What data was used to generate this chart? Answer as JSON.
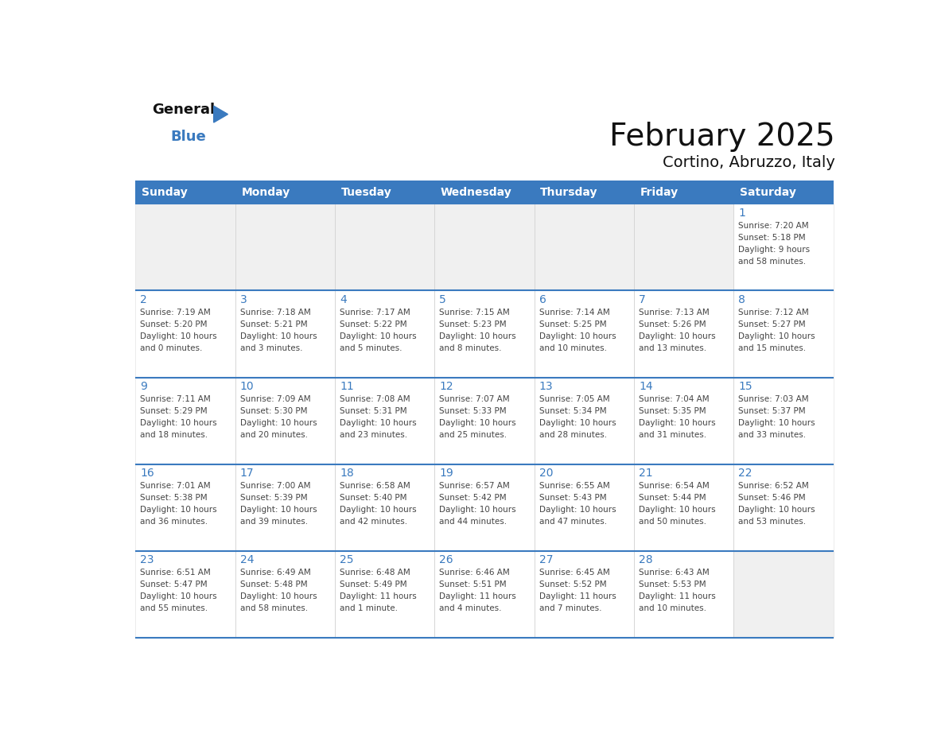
{
  "title": "February 2025",
  "subtitle": "Cortino, Abruzzo, Italy",
  "days_of_week": [
    "Sunday",
    "Monday",
    "Tuesday",
    "Wednesday",
    "Thursday",
    "Friday",
    "Saturday"
  ],
  "header_bg_color": "#3a7abf",
  "header_text_color": "#ffffff",
  "cell_bg_light": "#f0f0f0",
  "cell_bg_white": "#ffffff",
  "day_num_color": "#3a7abf",
  "text_color": "#444444",
  "border_color": "#3a7abf",
  "title_color": "#111111",
  "subtitle_color": "#111111",
  "logo_general_color": "#111111",
  "logo_blue_color": "#3a7abf",
  "logo_triangle_color": "#3a7abf",
  "calendar_data": [
    [
      {
        "day": null,
        "info": null
      },
      {
        "day": null,
        "info": null
      },
      {
        "day": null,
        "info": null
      },
      {
        "day": null,
        "info": null
      },
      {
        "day": null,
        "info": null
      },
      {
        "day": null,
        "info": null
      },
      {
        "day": 1,
        "info": "Sunrise: 7:20 AM\nSunset: 5:18 PM\nDaylight: 9 hours\nand 58 minutes."
      }
    ],
    [
      {
        "day": 2,
        "info": "Sunrise: 7:19 AM\nSunset: 5:20 PM\nDaylight: 10 hours\nand 0 minutes."
      },
      {
        "day": 3,
        "info": "Sunrise: 7:18 AM\nSunset: 5:21 PM\nDaylight: 10 hours\nand 3 minutes."
      },
      {
        "day": 4,
        "info": "Sunrise: 7:17 AM\nSunset: 5:22 PM\nDaylight: 10 hours\nand 5 minutes."
      },
      {
        "day": 5,
        "info": "Sunrise: 7:15 AM\nSunset: 5:23 PM\nDaylight: 10 hours\nand 8 minutes."
      },
      {
        "day": 6,
        "info": "Sunrise: 7:14 AM\nSunset: 5:25 PM\nDaylight: 10 hours\nand 10 minutes."
      },
      {
        "day": 7,
        "info": "Sunrise: 7:13 AM\nSunset: 5:26 PM\nDaylight: 10 hours\nand 13 minutes."
      },
      {
        "day": 8,
        "info": "Sunrise: 7:12 AM\nSunset: 5:27 PM\nDaylight: 10 hours\nand 15 minutes."
      }
    ],
    [
      {
        "day": 9,
        "info": "Sunrise: 7:11 AM\nSunset: 5:29 PM\nDaylight: 10 hours\nand 18 minutes."
      },
      {
        "day": 10,
        "info": "Sunrise: 7:09 AM\nSunset: 5:30 PM\nDaylight: 10 hours\nand 20 minutes."
      },
      {
        "day": 11,
        "info": "Sunrise: 7:08 AM\nSunset: 5:31 PM\nDaylight: 10 hours\nand 23 minutes."
      },
      {
        "day": 12,
        "info": "Sunrise: 7:07 AM\nSunset: 5:33 PM\nDaylight: 10 hours\nand 25 minutes."
      },
      {
        "day": 13,
        "info": "Sunrise: 7:05 AM\nSunset: 5:34 PM\nDaylight: 10 hours\nand 28 minutes."
      },
      {
        "day": 14,
        "info": "Sunrise: 7:04 AM\nSunset: 5:35 PM\nDaylight: 10 hours\nand 31 minutes."
      },
      {
        "day": 15,
        "info": "Sunrise: 7:03 AM\nSunset: 5:37 PM\nDaylight: 10 hours\nand 33 minutes."
      }
    ],
    [
      {
        "day": 16,
        "info": "Sunrise: 7:01 AM\nSunset: 5:38 PM\nDaylight: 10 hours\nand 36 minutes."
      },
      {
        "day": 17,
        "info": "Sunrise: 7:00 AM\nSunset: 5:39 PM\nDaylight: 10 hours\nand 39 minutes."
      },
      {
        "day": 18,
        "info": "Sunrise: 6:58 AM\nSunset: 5:40 PM\nDaylight: 10 hours\nand 42 minutes."
      },
      {
        "day": 19,
        "info": "Sunrise: 6:57 AM\nSunset: 5:42 PM\nDaylight: 10 hours\nand 44 minutes."
      },
      {
        "day": 20,
        "info": "Sunrise: 6:55 AM\nSunset: 5:43 PM\nDaylight: 10 hours\nand 47 minutes."
      },
      {
        "day": 21,
        "info": "Sunrise: 6:54 AM\nSunset: 5:44 PM\nDaylight: 10 hours\nand 50 minutes."
      },
      {
        "day": 22,
        "info": "Sunrise: 6:52 AM\nSunset: 5:46 PM\nDaylight: 10 hours\nand 53 minutes."
      }
    ],
    [
      {
        "day": 23,
        "info": "Sunrise: 6:51 AM\nSunset: 5:47 PM\nDaylight: 10 hours\nand 55 minutes."
      },
      {
        "day": 24,
        "info": "Sunrise: 6:49 AM\nSunset: 5:48 PM\nDaylight: 10 hours\nand 58 minutes."
      },
      {
        "day": 25,
        "info": "Sunrise: 6:48 AM\nSunset: 5:49 PM\nDaylight: 11 hours\nand 1 minute."
      },
      {
        "day": 26,
        "info": "Sunrise: 6:46 AM\nSunset: 5:51 PM\nDaylight: 11 hours\nand 4 minutes."
      },
      {
        "day": 27,
        "info": "Sunrise: 6:45 AM\nSunset: 5:52 PM\nDaylight: 11 hours\nand 7 minutes."
      },
      {
        "day": 28,
        "info": "Sunrise: 6:43 AM\nSunset: 5:53 PM\nDaylight: 11 hours\nand 10 minutes."
      },
      {
        "day": null,
        "info": null
      }
    ]
  ]
}
